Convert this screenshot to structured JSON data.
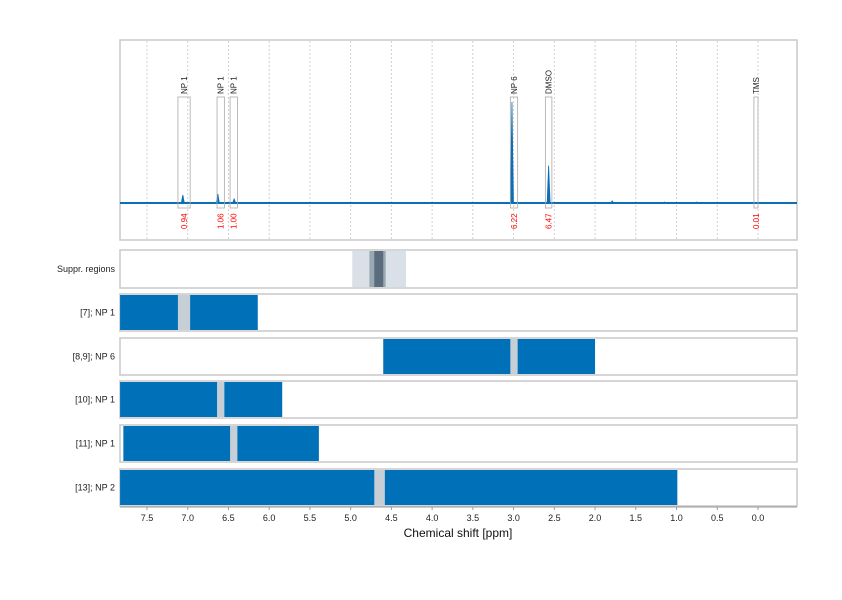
{
  "chart_data": {
    "type": "line",
    "xlabel": "Chemical shift [ppm]",
    "xlim": [
      7.83,
      -0.48
    ],
    "x_reversed": true,
    "xticks": [
      "7.5",
      "7.0",
      "6.5",
      "6.0",
      "5.5",
      "5.0",
      "4.5",
      "4.0",
      "3.5",
      "3.0",
      "2.5",
      "2.0",
      "1.5",
      "1.0",
      "0.5",
      "0.0"
    ],
    "grid": "vertical dashed",
    "colors": {
      "spectrum": "#0b6fb8",
      "bar": "#0070b8",
      "gap": "#c6cfd6",
      "integral": "#ff0000",
      "box": "#aaaaaa"
    },
    "spectrum_peaks": [
      {
        "ppm": 7.06,
        "height": 0.08
      },
      {
        "ppm": 6.63,
        "height": 0.09
      },
      {
        "ppm": 6.43,
        "height": 0.04
      },
      {
        "ppm": 3.02,
        "height": 1.0
      },
      {
        "ppm": 2.57,
        "height": 0.37
      },
      {
        "ppm": 1.79,
        "height": 0.02
      },
      {
        "ppm": 1.15,
        "height": 0.01
      },
      {
        "ppm": 0.75,
        "height": 0.01
      }
    ],
    "annotations": [
      {
        "label": "NP 1",
        "from": 7.12,
        "to": 6.97,
        "integral": "0.94"
      },
      {
        "label": "NP 1",
        "from": 6.64,
        "to": 6.55,
        "integral": "1.06"
      },
      {
        "label": "NP 1",
        "from": 6.48,
        "to": 6.39,
        "integral": "1.00"
      },
      {
        "label": "NP 6",
        "from": 3.04,
        "to": 2.95,
        "integral": "6.22"
      },
      {
        "label": "DMSO",
        "from": 2.61,
        "to": 2.53,
        "integral": "6.47"
      },
      {
        "label": "TMS",
        "from": 0.05,
        "to": 0.0,
        "integral": "0.01"
      }
    ],
    "suppressed": {
      "label": "Suppr. regions",
      "regions": [
        {
          "from": 4.98,
          "to": 4.32,
          "level": 1
        },
        {
          "from": 4.77,
          "to": 4.57,
          "level": 2
        },
        {
          "from": 4.71,
          "to": 4.6,
          "level": 3
        }
      ]
    },
    "rows": [
      {
        "label": "[7]; NP 1",
        "from": 7.83,
        "to": 6.14,
        "gap": [
          7.12,
          6.97
        ]
      },
      {
        "label": "[8,9]; NP 6",
        "from": 4.6,
        "to": 2.0,
        "gap": [
          3.04,
          2.95
        ]
      },
      {
        "label": "[10]; NP 1",
        "from": 7.83,
        "to": 5.84,
        "gap": [
          6.64,
          6.55
        ]
      },
      {
        "label": "[11]; NP 1",
        "from": 7.79,
        "to": 5.39,
        "gap": [
          6.48,
          6.39
        ]
      },
      {
        "label": "[13]; NP 2",
        "from": 7.83,
        "to": 0.99,
        "gap": [
          4.71,
          4.58
        ]
      }
    ]
  }
}
